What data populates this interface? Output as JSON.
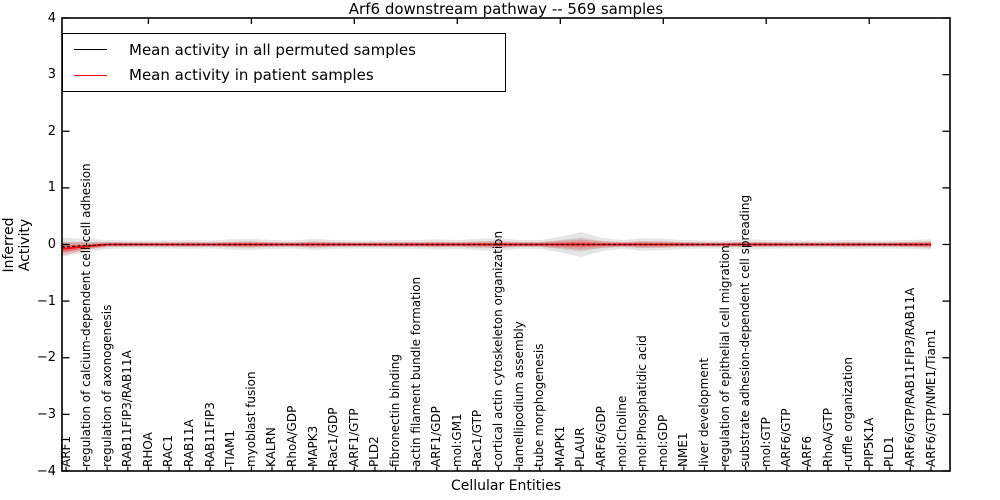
{
  "chart_data": {
    "type": "line",
    "title": "Arf6 downstream pathway -- 569 samples",
    "xlabel": "Cellular Entities",
    "ylabel": "Inferred Activity",
    "ylim": [
      -4,
      4
    ],
    "grid": false,
    "legend_position": "upper left",
    "yticks": [
      {
        "value": 4,
        "label": "4"
      },
      {
        "value": 3,
        "label": "3"
      },
      {
        "value": 2,
        "label": "2"
      },
      {
        "value": 1,
        "label": "1"
      },
      {
        "value": 0,
        "label": "0"
      },
      {
        "value": -1,
        "label": "−1"
      },
      {
        "value": -2,
        "label": "−2"
      },
      {
        "value": -3,
        "label": "−3"
      },
      {
        "value": -4,
        "label": "−4"
      }
    ],
    "categories": [
      "ARF1",
      "regulation of calcium-dependent cell-cell adhesion",
      "regulation of axonogenesis",
      "RAB11FIP3/RAB11A",
      "RHOA",
      "RAC1",
      "RAB11A",
      "RAB11FIP3",
      "TIAM1",
      "myoblast fusion",
      "KALRN",
      "RhoA/GDP",
      "MAPK3",
      "Rac1/GDP",
      "ARF1/GTP",
      "PLD2",
      "fibronectin binding",
      "actin filament bundle formation",
      "ARF1/GDP",
      "mol:GM1",
      "Rac1/GTP",
      "cortical actin cytoskeleton organization",
      "lamellipodium assembly",
      "tube morphogenesis",
      "MAPK1",
      "PLAUR",
      "ARF6/GDP",
      "mol:Choline",
      "mol:Phosphatidic acid",
      "mol:GDP",
      "NME1",
      "liver development",
      "regulation of epithelial cell migration",
      "substrate adhesion-dependent cell spreading",
      "mol:GTP",
      "ARF6/GTP",
      "ARF6",
      "RhoA/GTP",
      "ruffle organization",
      "PIP5K1A",
      "PLD1",
      "ARF6/GTP/RAB11FIP3/RAB11A",
      "ARF6/GTP/NME1/Tiam1"
    ],
    "series": [
      {
        "name": "Mean activity in all permuted samples",
        "color": "#000000",
        "line_style": "dashed",
        "values": [
          -0.04,
          -0.02,
          0,
          0,
          0,
          0,
          0,
          0,
          0,
          0,
          0,
          0,
          0,
          0,
          0,
          0,
          0,
          0,
          0,
          0,
          0,
          0,
          0,
          0,
          0,
          0,
          0,
          0,
          0,
          0,
          0,
          0,
          0,
          0,
          0,
          0,
          0,
          0,
          0,
          0,
          0,
          0,
          0
        ],
        "band_halfwidth": [
          0.16,
          0.12,
          0.08,
          0.07,
          0.07,
          0.07,
          0.08,
          0.07,
          0.09,
          0.1,
          0.08,
          0.07,
          0.1,
          0.08,
          0.07,
          0.07,
          0.08,
          0.08,
          0.09,
          0.08,
          0.1,
          0.11,
          0.08,
          0.08,
          0.14,
          0.22,
          0.12,
          0.08,
          0.11,
          0.1,
          0.08,
          0.07,
          0.07,
          0.09,
          0.08,
          0.07,
          0.07,
          0.07,
          0.08,
          0.07,
          0.07,
          0.08,
          0.09
        ],
        "band_color": "rgba(0,0,0,0.10)",
        "band_core_color": "rgba(0,0,0,0.10)"
      },
      {
        "name": "Mean activity in patient samples",
        "color": "#ff0000",
        "line_style": "solid",
        "values": [
          -0.07,
          -0.03,
          0,
          0,
          0,
          0,
          0,
          0,
          0,
          0,
          0,
          0,
          0,
          0,
          0,
          0,
          0,
          0,
          0,
          0,
          0,
          0,
          0,
          0,
          0,
          0,
          0,
          0,
          0,
          0,
          0,
          0,
          0,
          0,
          0,
          0,
          0,
          0,
          0,
          0,
          0,
          0,
          0
        ],
        "band_halfwidth": [
          0.11,
          0.06,
          0.04,
          0.035,
          0.035,
          0.035,
          0.04,
          0.035,
          0.045,
          0.05,
          0.04,
          0.035,
          0.05,
          0.04,
          0.035,
          0.035,
          0.04,
          0.04,
          0.045,
          0.04,
          0.05,
          0.055,
          0.04,
          0.04,
          0.065,
          0.09,
          0.055,
          0.04,
          0.055,
          0.05,
          0.04,
          0.035,
          0.035,
          0.045,
          0.04,
          0.035,
          0.035,
          0.035,
          0.04,
          0.035,
          0.035,
          0.045,
          0.055
        ],
        "band_color": "rgba(255,0,0,0.20)",
        "band_core_color": "rgba(255,0,0,0.30)"
      }
    ]
  }
}
